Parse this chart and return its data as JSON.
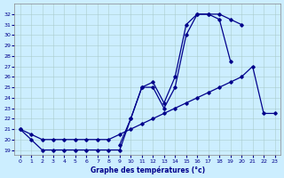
{
  "title": "Graphe des températures (°c)",
  "bg_color": "#cceeff",
  "line_color": "#00008b",
  "x_hours": [
    0,
    1,
    2,
    3,
    4,
    5,
    6,
    7,
    8,
    9,
    10,
    11,
    12,
    13,
    14,
    15,
    16,
    17,
    18,
    19,
    20,
    21,
    22,
    23
  ],
  "line1": [
    21,
    20,
    19,
    19,
    19,
    19,
    19,
    19,
    19,
    19,
    22,
    25,
    25,
    23,
    25,
    30,
    32,
    32,
    31.5,
    27.5,
    null,
    null,
    null,
    null
  ],
  "line2": [
    null,
    null,
    null,
    null,
    null,
    null,
    null,
    null,
    null,
    19.5,
    22,
    25,
    25.5,
    23.5,
    26,
    31,
    32,
    32,
    32,
    31.5,
    31,
    null,
    null,
    null
  ],
  "line3": [
    21,
    20.5,
    20,
    20,
    20,
    20,
    20,
    20,
    20,
    20.5,
    21,
    21.5,
    22,
    22.5,
    23,
    23.5,
    24,
    24.5,
    25,
    25.5,
    26,
    27,
    22.5,
    22.5
  ],
  "ylim": [
    18.5,
    33
  ],
  "xlim": [
    -0.5,
    23.5
  ],
  "yticks": [
    19,
    20,
    21,
    22,
    23,
    24,
    25,
    26,
    27,
    28,
    29,
    30,
    31,
    32
  ],
  "xticks": [
    0,
    1,
    2,
    3,
    4,
    5,
    6,
    7,
    8,
    9,
    10,
    11,
    12,
    13,
    14,
    15,
    16,
    17,
    18,
    19,
    20,
    21,
    22,
    23
  ]
}
